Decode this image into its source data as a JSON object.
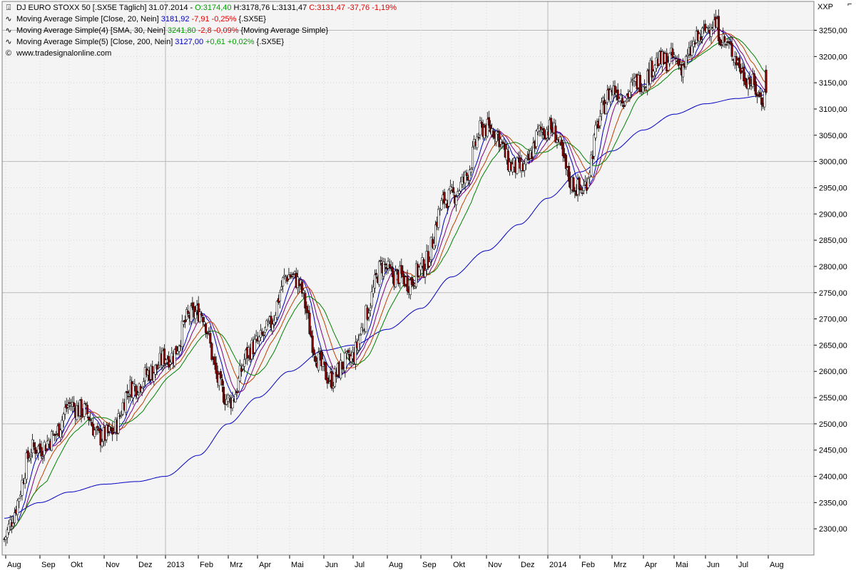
{
  "header": {
    "symbol_title": "DJ EURO STOXX 50 [.SX5E  Täglich]",
    "date": "31.07.2014",
    "open": "O:3174,40",
    "high": "H:3178,76",
    "low": "L:3131,47",
    "close": "C:3131,47",
    "change": "-37,76",
    "change_pct": "-1,19%"
  },
  "indicators": [
    {
      "label": "Moving Average Simple [Close, 20, Nein]",
      "value": "3181,92",
      "change": "-7,91",
      "change_pct": "-0,25%",
      "suffix": "{.SX5E}",
      "value_color": "#0000c0",
      "change_color": "#e00000"
    },
    {
      "label": "Moving Average Simple(4) [SMA, 30, Nein]",
      "value": "3241,80",
      "change": "-2,8",
      "change_pct": "-0,09%",
      "suffix": "{Moving Average Simple}",
      "value_color": "#00a000",
      "change_color": "#e00000"
    },
    {
      "label": "Moving Average Simple(5) [Close, 200, Nein]",
      "value": "3127,00",
      "change": "+0,61",
      "change_pct": "+0,02%",
      "suffix": "{.SX5E}",
      "value_color": "#0000c0",
      "change_color": "#00a000"
    }
  ],
  "source": "www.tradesignalonline.com",
  "scale_label": "XXP",
  "colors": {
    "grid": "#c8c8c8",
    "plot_bg": "#f4f4f4",
    "candle_down": "#8b0000",
    "candle_up": "#ffffff",
    "ma20": "#0000c0",
    "ma_purple": "#800080",
    "ma_red": "#c04000",
    "ma_green": "#008000",
    "ma200": "#0000c0"
  },
  "chart_data": {
    "type": "candlestick",
    "x_tick_labels": [
      "Aug",
      "Sep",
      "Okt",
      "Nov",
      "Dez",
      "2013",
      "Feb",
      "Mrz",
      "Apr",
      "Mai",
      "Jun",
      "Jul",
      "Aug",
      "Sep",
      "Okt",
      "Nov",
      "Dez",
      "2014",
      "Feb",
      "Mrz",
      "Apr",
      "Mai",
      "Jun",
      "Jul",
      "Aug"
    ],
    "y_tick_labels": [
      "2300,00",
      "2350,00",
      "2400,00",
      "2450,00",
      "2500,00",
      "2550,00",
      "2600,00",
      "2650,00",
      "2700,00",
      "2750,00",
      "2800,00",
      "2850,00",
      "2900,00",
      "2950,00",
      "3000,00",
      "3050,00",
      "3100,00",
      "3150,00",
      "3200,00",
      "3250,00"
    ],
    "ylim": [
      2250,
      3305
    ],
    "x": [
      "2012-08-01",
      "2012-09-01",
      "2012-10-01",
      "2012-11-01",
      "2012-12-01",
      "2013-01-01",
      "2013-02-01",
      "2013-03-01",
      "2013-04-01",
      "2013-05-01",
      "2013-06-01",
      "2013-07-01",
      "2013-08-01",
      "2013-09-01",
      "2013-10-01",
      "2013-11-01",
      "2013-12-01",
      "2014-01-01",
      "2014-02-01",
      "2014-03-01",
      "2014-04-01",
      "2014-05-01",
      "2014-06-01",
      "2014-07-01",
      "2014-07-31"
    ],
    "series": [
      {
        "values": [
          2280,
          2470,
          2520,
          2490,
          2560,
          2640,
          2700,
          2560,
          2640,
          2800,
          2590,
          2640,
          2800,
          2780,
          2950,
          3050,
          3000,
          3050,
          2960,
          3120,
          3170,
          3180,
          3260,
          3190,
          3131
        ]
      }
    ],
    "moving_averages": [
      {
        "values": [
          2300,
          2420,
          2500,
          2510,
          2530,
          2620,
          2690,
          2620,
          2630,
          2740,
          2700,
          2620,
          2720,
          2780,
          2890,
          3040,
          3050,
          3030,
          2990,
          3090,
          3140,
          3170,
          3230,
          3220,
          3182
        ]
      },
      {
        "values": [
          2280,
          2390,
          2480,
          2515,
          2520,
          2600,
          2690,
          2650,
          2640,
          2710,
          2730,
          2630,
          2690,
          2780,
          2860,
          3010,
          3060,
          3040,
          3000,
          3070,
          3120,
          3160,
          3210,
          3250,
          3242
        ]
      },
      {
        "values": [
          2320,
          2350,
          2370,
          2385,
          2390,
          2400,
          2440,
          2500,
          2550,
          2600,
          2640,
          2650,
          2680,
          2720,
          2780,
          2830,
          2880,
          2930,
          2980,
          3020,
          3060,
          3090,
          3110,
          3120,
          3127
        ]
      }
    ]
  }
}
